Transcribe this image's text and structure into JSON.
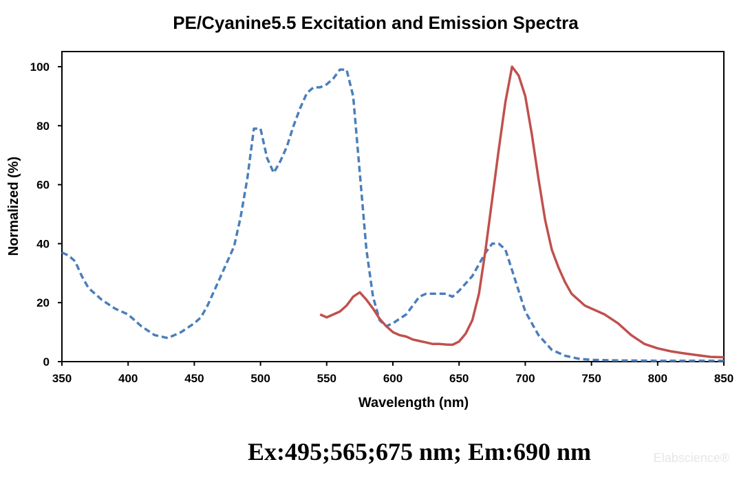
{
  "chart_data": {
    "type": "line",
    "title": "PE/Cyanine5.5 Excitation and Emission Spectra",
    "xlabel": "Wavelength (nm)",
    "ylabel": "Normalized (%)",
    "xlim": [
      350,
      850
    ],
    "ylim": [
      0,
      100
    ],
    "xticks": [
      350,
      400,
      450,
      500,
      550,
      600,
      650,
      700,
      750,
      800,
      850
    ],
    "yticks": [
      0,
      20,
      40,
      60,
      80,
      100
    ],
    "grid": false,
    "legend": "none",
    "series": [
      {
        "color": "#4a7ebb",
        "style": "dashed",
        "x": [
          350,
          355,
          360,
          365,
          370,
          380,
          390,
          400,
          410,
          420,
          430,
          440,
          450,
          455,
          460,
          470,
          480,
          485,
          490,
          495,
          500,
          505,
          510,
          515,
          520,
          525,
          530,
          535,
          540,
          545,
          550,
          555,
          560,
          565,
          570,
          575,
          580,
          585,
          590,
          595,
          600,
          610,
          620,
          625,
          630,
          640,
          645,
          650,
          660,
          665,
          670,
          675,
          680,
          685,
          690,
          700,
          710,
          720,
          730,
          740,
          750,
          770,
          800,
          850
        ],
        "values": [
          37,
          36,
          34,
          29,
          25,
          21,
          18,
          16,
          12,
          9,
          8,
          10,
          13,
          15,
          19,
          29,
          39,
          49,
          62,
          79,
          79,
          69,
          64,
          68,
          73,
          80,
          86,
          91,
          93,
          93,
          94,
          96,
          99,
          99,
          90,
          64,
          38,
          22,
          14,
          12,
          13,
          16,
          22,
          23,
          23,
          23,
          22,
          24,
          29,
          33,
          37,
          40,
          40,
          38,
          31,
          17,
          9,
          4,
          2,
          1,
          0.6,
          0.4,
          0.3,
          0.3
        ]
      },
      {
        "color": "#c0504d",
        "style": "solid",
        "x": [
          545,
          550,
          555,
          560,
          565,
          570,
          575,
          580,
          585,
          590,
          595,
          600,
          605,
          610,
          615,
          620,
          625,
          630,
          635,
          640,
          645,
          650,
          655,
          660,
          665,
          670,
          675,
          680,
          685,
          690,
          695,
          700,
          705,
          710,
          715,
          720,
          725,
          730,
          735,
          740,
          745,
          750,
          760,
          770,
          780,
          790,
          800,
          810,
          820,
          830,
          840,
          850
        ],
        "values": [
          16,
          15,
          16,
          17,
          19,
          22,
          23.5,
          21,
          18,
          14.5,
          12,
          10,
          9,
          8.5,
          7.5,
          7,
          6.5,
          6,
          6,
          5.8,
          5.7,
          6.8,
          9.5,
          14,
          23,
          38,
          55,
          72,
          88,
          100,
          97,
          90,
          77,
          62,
          48,
          38,
          32,
          27,
          23,
          21,
          19,
          18,
          16,
          13,
          9,
          6,
          4.5,
          3.5,
          2.8,
          2.2,
          1.6,
          1.5
        ]
      }
    ]
  },
  "caption": "Ex:495;565;675 nm; Em:690 nm",
  "watermark": "Elabscience®"
}
